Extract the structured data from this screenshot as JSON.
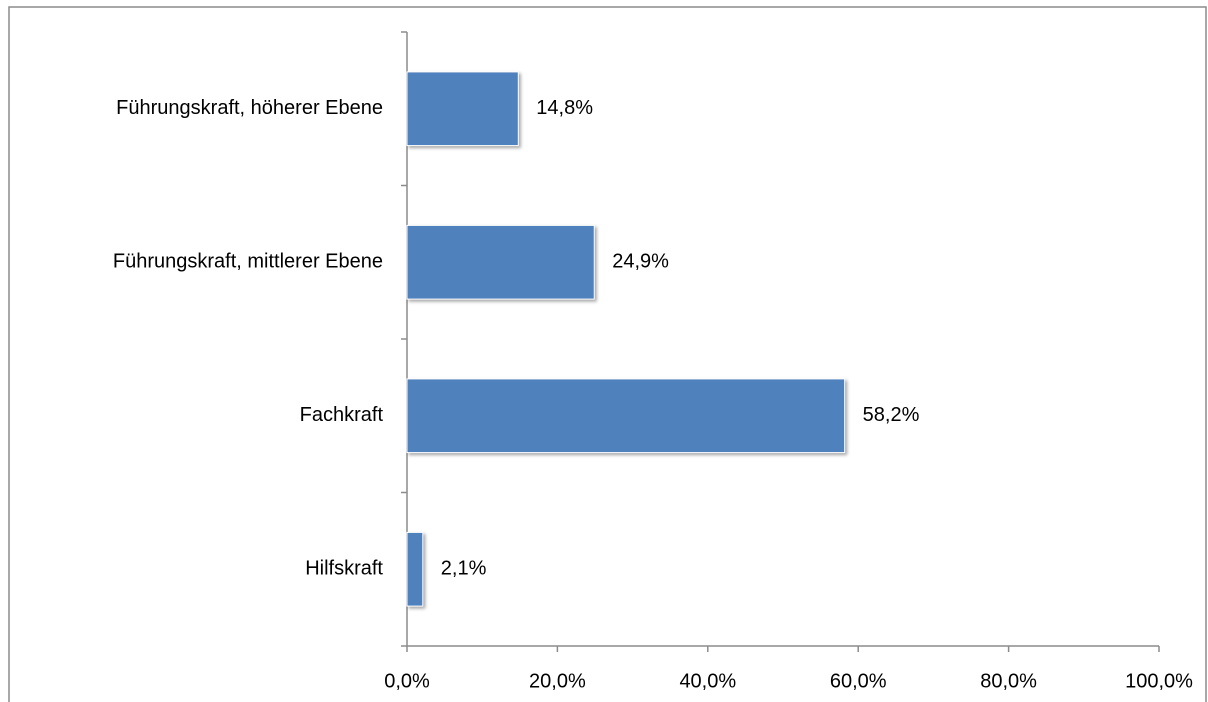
{
  "chart_data": {
    "type": "hbar",
    "categories": [
      "Führungskraft, höherer Ebene",
      "Führungskraft, mittlerer Ebene",
      "Fachkraft",
      "Hilfskraft"
    ],
    "values": [
      14.8,
      24.9,
      58.2,
      2.1
    ],
    "value_labels": [
      "14,8%",
      "24,9%",
      "58,2%",
      "2,1%"
    ],
    "color": "#4f81bd",
    "xlim": [
      0,
      100
    ],
    "xticks": [
      {
        "value": 0,
        "label": "0,0%"
      },
      {
        "value": 20,
        "label": "20,0%"
      },
      {
        "value": 40,
        "label": "40,0%"
      },
      {
        "value": 60,
        "label": "60,0%"
      },
      {
        "value": 80,
        "label": "80,0%"
      },
      {
        "value": 100,
        "label": "100,0%"
      }
    ],
    "grid": false
  }
}
